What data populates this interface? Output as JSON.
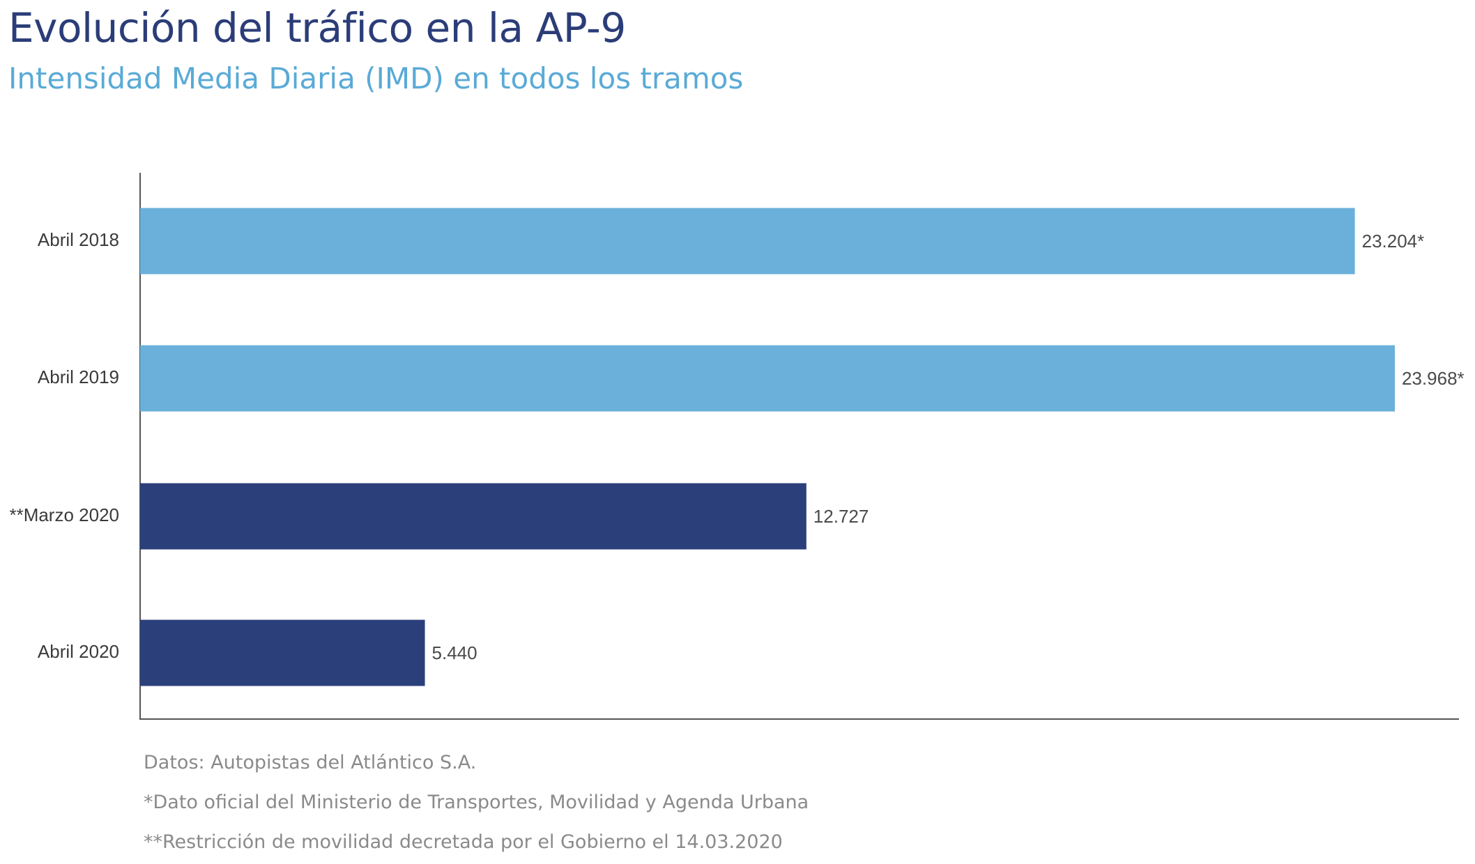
{
  "chart_data": {
    "type": "bar",
    "orientation": "horizontal",
    "title": "Evolución del tráfico en la AP-9",
    "subtitle": "Intensidad Media Diaria (IMD) en todos los tramos",
    "categories": [
      "Abril 2018",
      "Abril 2019",
      "**Marzo 2020",
      "Abril 2020"
    ],
    "values": [
      23204,
      23968,
      12727,
      5440
    ],
    "value_labels": [
      "23.204*",
      "23.968*",
      "12.727",
      "5.440"
    ],
    "bar_colors": [
      "#6bb0da",
      "#6bb0da",
      "#2b3f7a",
      "#2b3f7a"
    ],
    "xlim": [
      0,
      25000
    ],
    "grid": false,
    "legend": "none"
  },
  "notes": [
    "Datos: Autopistas del Atlántico S.A.",
    "*Dato oficial del Ministerio de Transportes, Movilidad y Agenda Urbana",
    "**Restricción de movilidad decretada por el Gobierno el 14.03.2020"
  ],
  "colors": {
    "title": "#2b3d78",
    "subtitle": "#5aaad6",
    "axis": "#555555",
    "category_label": "#3a3a3a",
    "value_label": "#4a4a4a",
    "note": "#8a8a8a"
  }
}
